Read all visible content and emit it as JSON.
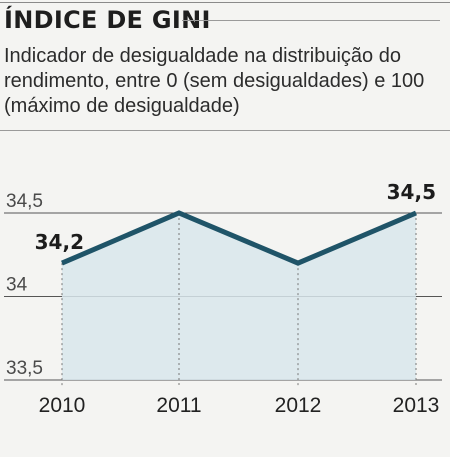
{
  "header": {
    "title": "ÍNDICE DE GINI",
    "subtitle": "Indicador de desigualdade na distribuição do rendimento, entre 0 (sem desigualdades) e 100 (máximo de desigualdade)"
  },
  "colors": {
    "line": "#1f5468",
    "area": "#d8e6ec",
    "gridline": "#555555",
    "dashed": "#777777"
  },
  "chart_data": {
    "type": "area",
    "title": "ÍNDICE DE GINI",
    "subtitle": "Indicador de desigualdade na distribuição do rendimento, entre 0 (sem desigualdades) e 100 (máximo de desigualdade)",
    "xlabel": "",
    "ylabel": "",
    "categories": [
      "2010",
      "2011",
      "2012",
      "2013"
    ],
    "values": [
      34.2,
      34.5,
      34.2,
      34.5
    ],
    "data_labels": [
      {
        "index": 0,
        "text": "34,2"
      },
      {
        "index": 3,
        "text": "34,5"
      }
    ],
    "yticks": [
      {
        "value": 34.5,
        "label": "34,5"
      },
      {
        "value": 34,
        "label": "34"
      },
      {
        "value": 33.5,
        "label": "33,5"
      }
    ],
    "ylim": [
      33.5,
      34.5
    ],
    "grid": true,
    "legend": "none"
  }
}
